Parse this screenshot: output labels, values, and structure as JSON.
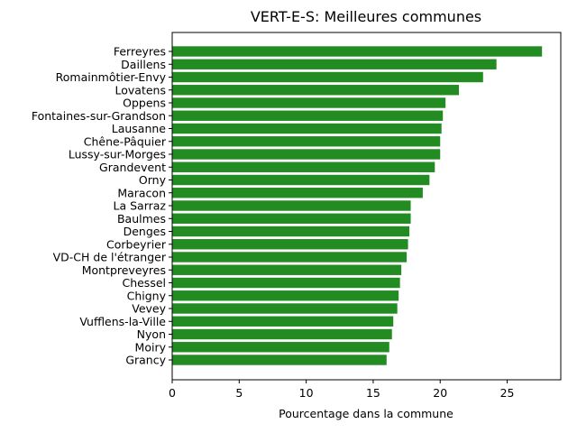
{
  "chart_data": {
    "type": "bar",
    "orientation": "horizontal",
    "title": "VERT-E-S: Meilleures communes",
    "xlabel": "Pourcentage dans la commune",
    "ylabel": "",
    "xlim": [
      0,
      29
    ],
    "xticks": [
      0,
      5,
      10,
      15,
      20,
      25
    ],
    "grid": false,
    "bar_color": "#228b22",
    "categories": [
      "Ferreyres",
      "Daillens",
      "Romainmôtier-Envy",
      "Lovatens",
      "Oppens",
      "Fontaines-sur-Grandson",
      "Lausanne",
      "Chêne-Pâquier",
      "Lussy-sur-Morges",
      "Grandevent",
      "Orny",
      "Maracon",
      "La Sarraz",
      "Baulmes",
      "Denges",
      "Corbeyrier",
      "VD-CH de l'étranger",
      "Montpreveyres",
      "Chessel",
      "Chigny",
      "Vevey",
      "Vufflens-la-Ville",
      "Nyon",
      "Moiry",
      "Grancy"
    ],
    "values": [
      27.6,
      24.2,
      23.2,
      21.4,
      20.4,
      20.2,
      20.1,
      20.0,
      20.0,
      19.6,
      19.2,
      18.7,
      17.8,
      17.8,
      17.7,
      17.6,
      17.5,
      17.1,
      17.0,
      16.9,
      16.8,
      16.5,
      16.4,
      16.2,
      16.0
    ]
  }
}
